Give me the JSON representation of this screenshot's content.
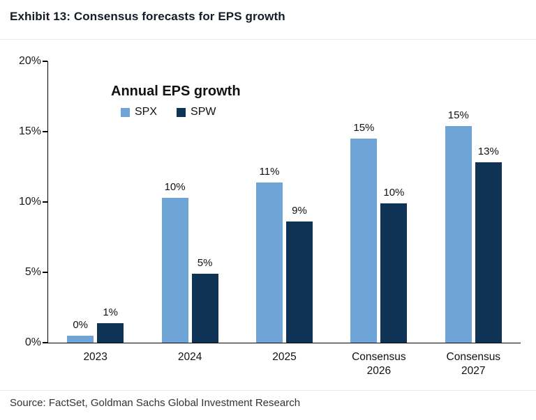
{
  "header": {
    "title": "Exhibit 13: Consensus forecasts for EPS growth"
  },
  "footer": {
    "source": "Source: FactSet, Goldman Sachs Global Investment Research"
  },
  "chart_data": {
    "type": "bar",
    "title": "Annual EPS growth",
    "categories": [
      "2023",
      "2024",
      "2025",
      "Consensus\n2026",
      "Consensus\n2027"
    ],
    "series": [
      {
        "name": "SPX",
        "color": "#6FA5D6",
        "values": [
          0.5,
          10.3,
          11.4,
          14.5,
          15.4
        ],
        "labels": [
          "0%",
          "10%",
          "11%",
          "15%",
          "15%"
        ]
      },
      {
        "name": "SPW",
        "color": "#0E3355",
        "values": [
          1.4,
          4.9,
          8.6,
          9.9,
          12.8
        ],
        "labels": [
          "1%",
          "5%",
          "9%",
          "10%",
          "13%"
        ]
      }
    ],
    "ylim": [
      0,
      20
    ],
    "yticks": [
      0,
      5,
      10,
      15,
      20
    ],
    "ytick_labels": [
      "0%",
      "5%",
      "10%",
      "15%",
      "20%"
    ],
    "legend_position": "top-left-inside",
    "grid": false
  }
}
